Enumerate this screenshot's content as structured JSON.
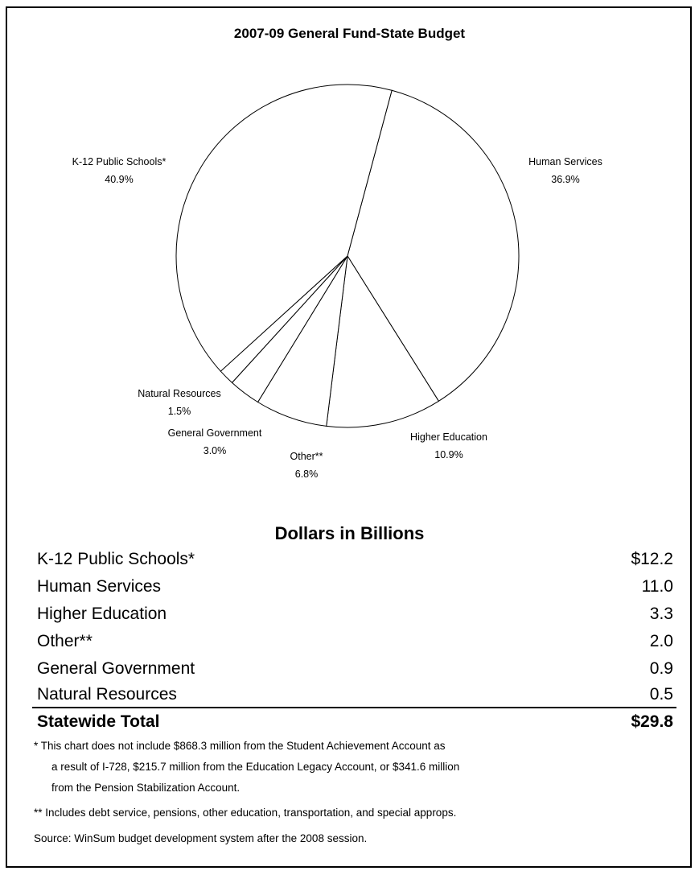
{
  "chart_data": {
    "type": "pie",
    "title": "2007-09 General Fund-State Budget",
    "slices": [
      {
        "label": "Human Services",
        "percent_label": "36.9%",
        "value": 36.9
      },
      {
        "label": "Higher Education",
        "percent_label": "10.9%",
        "value": 10.9
      },
      {
        "label": "Other**",
        "percent_label": "6.8%",
        "value": 6.8
      },
      {
        "label": "General Government",
        "percent_label": "3.0%",
        "value": 3.0
      },
      {
        "label": "Natural Resources",
        "percent_label": "1.5%",
        "value": 1.5
      },
      {
        "label": "K-12 Public Schools*",
        "percent_label": "40.9%",
        "value": 40.9
      }
    ]
  },
  "table": {
    "heading": "Dollars in Billions",
    "rows": [
      {
        "label": "K-12 Public Schools*",
        "value": "$12.2"
      },
      {
        "label": "Human Services",
        "value": "11.0"
      },
      {
        "label": "Higher Education",
        "value": "3.3"
      },
      {
        "label": "Other**",
        "value": "2.0"
      },
      {
        "label": "General Government",
        "value": "0.9"
      },
      {
        "label": "Natural Resources",
        "value": "0.5"
      }
    ],
    "total": {
      "label": "Statewide Total",
      "value": "$29.8"
    }
  },
  "footnotes": {
    "note1_line1": "*  This chart does not include $868.3 million from the Student Achievement Account as",
    "note1_line2": "a result of I-728, $215.7 million from the Education Legacy Account, or $341.6 million",
    "note1_line3": "from the Pension Stabilization Account.",
    "note2": "**  Includes debt service, pensions, other education, transportation, and special approps.",
    "source": "Source:  WinSum budget development system after the 2008 session."
  }
}
